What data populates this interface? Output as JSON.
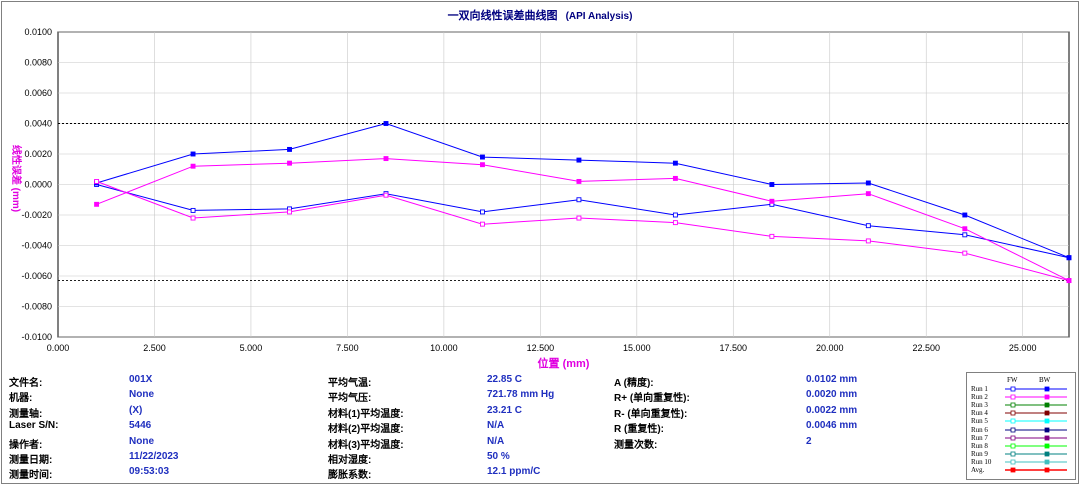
{
  "title": {
    "main": "一双向线性误差曲线图",
    "sub": "(API Analysis)"
  },
  "axes": {
    "xlabel": "位置 (mm)",
    "ylabel": "线性误差 (mm)"
  },
  "chart_data": {
    "type": "line",
    "title": "一双向线性误差曲线图",
    "xlabel": "位置 (mm)",
    "ylabel": "线性误差 (mm)",
    "xlim": [
      0,
      26.2
    ],
    "ylim": [
      -0.01,
      0.01
    ],
    "x_ticks": [
      "0.000",
      "2.500",
      "5.000",
      "7.500",
      "10.000",
      "12.500",
      "15.000",
      "17.500",
      "20.000",
      "22.500",
      "25.000"
    ],
    "y_ticks": [
      "0.0100",
      "0.0080",
      "0.0060",
      "0.0040",
      "0.0020",
      "0.0000",
      "-0.0020",
      "-0.0040",
      "-0.0060",
      "-0.0080",
      "-0.0100"
    ],
    "grid": true,
    "x": [
      1.0,
      3.5,
      6.0,
      8.5,
      11.0,
      13.5,
      16.0,
      18.5,
      21.0,
      23.5,
      26.2
    ],
    "series": [
      {
        "name": "Run 1",
        "direction": "FW",
        "color": "#0000ff",
        "marker": "open",
        "values": [
          0.0,
          -0.0017,
          -0.0016,
          -0.0006,
          -0.0018,
          -0.001,
          -0.002,
          -0.0013,
          -0.0027,
          -0.0033,
          -0.0048
        ]
      },
      {
        "name": "Run 1",
        "direction": "BW",
        "color": "#0000ff",
        "marker": "filled",
        "values": [
          0.0001,
          0.002,
          0.0023,
          0.004,
          0.0018,
          0.0016,
          0.0014,
          0.0,
          0.0001,
          -0.002,
          -0.0048
        ]
      },
      {
        "name": "Run 2",
        "direction": "FW",
        "color": "#ff00ff",
        "marker": "open",
        "values": [
          0.0002,
          -0.0022,
          -0.0018,
          -0.0007,
          -0.0026,
          -0.0022,
          -0.0025,
          -0.0034,
          -0.0037,
          -0.0045,
          -0.0063
        ]
      },
      {
        "name": "Run 2",
        "direction": "BW",
        "color": "#ff00ff",
        "marker": "filled",
        "values": [
          -0.0013,
          0.0012,
          0.0014,
          0.0017,
          0.0013,
          0.0002,
          0.0004,
          -0.0011,
          -0.0006,
          -0.0029,
          -0.0063
        ]
      }
    ],
    "limit_lines": [
      0.004,
      -0.0063
    ],
    "legend_position": "bottom-right"
  },
  "info": {
    "col1": [
      {
        "label": "文件名:",
        "value": "001X"
      },
      {
        "label": "机器:",
        "value": "None"
      },
      {
        "label": "测量轴:",
        "value": "(X)"
      },
      {
        "label": "Laser S/N:",
        "value": "5446"
      },
      {
        "label": "操作者:",
        "value": "None"
      },
      {
        "label": "测量日期:",
        "value": "11/22/2023"
      },
      {
        "label": "测量时间:",
        "value": "09:53:03"
      }
    ],
    "col2": [
      {
        "label": "平均气温:",
        "value": "22.85 C"
      },
      {
        "label": "平均气压:",
        "value": "721.78 mm Hg"
      },
      {
        "label": "材料(1)平均温度:",
        "value": "23.21 C"
      },
      {
        "label": "材料(2)平均温度:",
        "value": "N/A"
      },
      {
        "label": "材料(3)平均温度:",
        "value": "N/A"
      },
      {
        "label": "相对湿度:",
        "value": "50 %"
      },
      {
        "label": "膨胀系数:",
        "value": "12.1 ppm/C"
      }
    ],
    "col3": [
      {
        "label": "A (精度):",
        "value": "0.0102 mm"
      },
      {
        "label": "R+ (单向重复性):",
        "value": "0.0020 mm"
      },
      {
        "label": "R- (单向重复性):",
        "value": "0.0022 mm"
      },
      {
        "label": "R (重复性):",
        "value": "0.0046 mm"
      },
      {
        "label": "测量次数:",
        "value": "2"
      }
    ]
  },
  "legend": {
    "headers": [
      "FW",
      "BW"
    ],
    "runs": [
      {
        "name": "Run 1",
        "color": "#0000ff"
      },
      {
        "name": "Run 2",
        "color": "#ff00ff"
      },
      {
        "name": "Run 3",
        "color": "#008000"
      },
      {
        "name": "Run 4",
        "color": "#800000"
      },
      {
        "name": "Run 5",
        "color": "#00ffff"
      },
      {
        "name": "Run 6",
        "color": "#000080"
      },
      {
        "name": "Run 7",
        "color": "#800080"
      },
      {
        "name": "Run 8",
        "color": "#00ff00"
      },
      {
        "name": "Run 9",
        "color": "#008080"
      },
      {
        "name": "Run 10",
        "color": "#40c0c0"
      },
      {
        "name": "Avg.",
        "color": "#ff0000"
      }
    ]
  }
}
